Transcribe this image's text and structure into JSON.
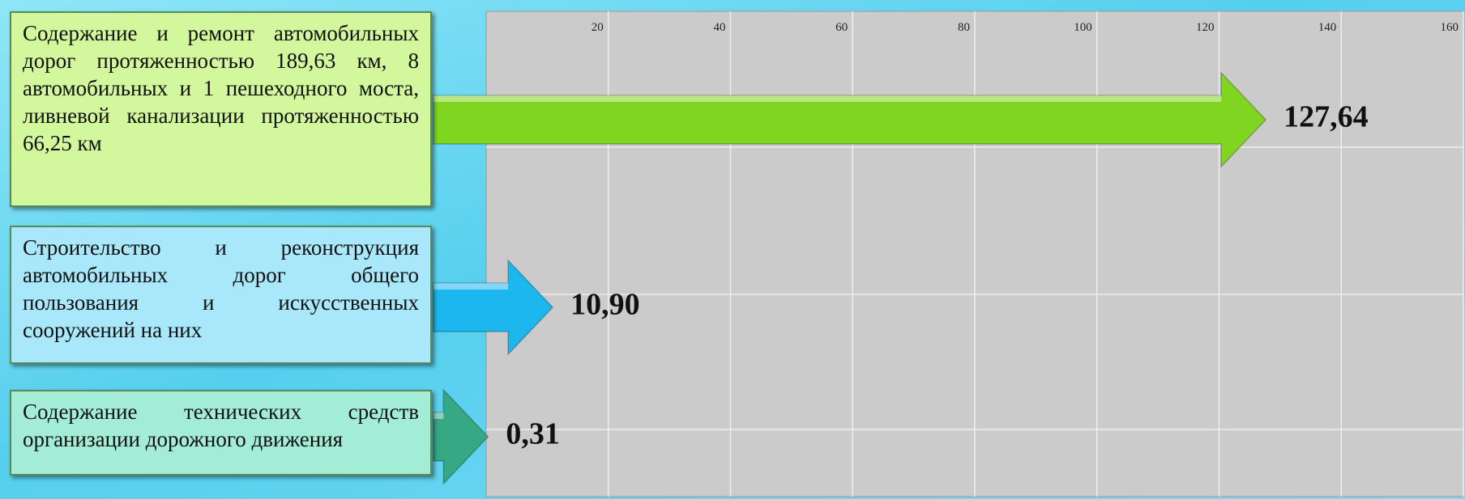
{
  "chart_data": {
    "type": "bar",
    "categories": [
      "Содержание и ремонт автомобильных дорог протяженностью 189,63 км, 8 автомобильных и 1 пешеходного моста, ливневой канализации протяженностью 66,25 км",
      "Строительство и реконструкция автомобильных дорог общего пользования и искусственных сооружений на них",
      "Содержание технических средств организации дорожного движения"
    ],
    "values": [
      127.64,
      10.9,
      0.31
    ],
    "value_labels": [
      "127,64",
      "10,90",
      "0,31"
    ],
    "colors": [
      "#7fd51f",
      "#1cb7ee",
      "#36a884"
    ],
    "box_colors": [
      "#d3f79c",
      "#a9e8fb",
      "#a3edd6"
    ],
    "xlim": [
      0,
      160
    ],
    "xticks": [
      20,
      40,
      60,
      80,
      100,
      120,
      140,
      160
    ],
    "grid": true
  }
}
